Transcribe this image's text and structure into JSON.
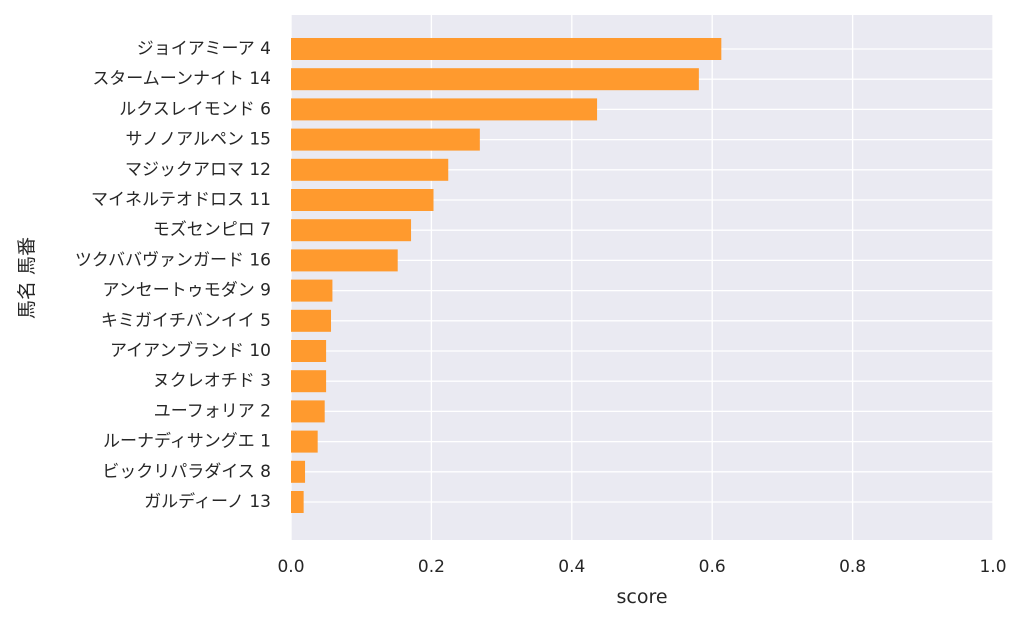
{
  "chart_data": {
    "type": "bar",
    "orientation": "horizontal",
    "title": "",
    "xlabel": "score",
    "ylabel": "馬名 馬番",
    "xlim": [
      0,
      1.0
    ],
    "xticks": [
      "0.0",
      "0.2",
      "0.4",
      "0.6",
      "0.8",
      "1.0"
    ],
    "grid": true,
    "bar_color": "#ff9a2e",
    "background_color": "#eaeaf2",
    "categories": [
      "ジョイアミーア 4",
      "スタームーンナイト 14",
      "ルクスレイモンド 6",
      "サノノアルペン 15",
      "マジックアロマ 12",
      "マイネルテオドロス 11",
      "モズセンピロ 7",
      "ツクババヴァンガード 16",
      "アンセートゥモダン 9",
      "キミガイチバンイイ 5",
      "アイアンブランド 10",
      "ヌクレオチド 3",
      "ユーフォリア 2",
      "ルーナディサングエ 1",
      "ビックリパラダイス 8",
      "ガルディーノ 13"
    ],
    "values": [
      0.613,
      0.581,
      0.436,
      0.269,
      0.224,
      0.203,
      0.171,
      0.152,
      0.059,
      0.057,
      0.05,
      0.05,
      0.048,
      0.038,
      0.02,
      0.018
    ]
  }
}
